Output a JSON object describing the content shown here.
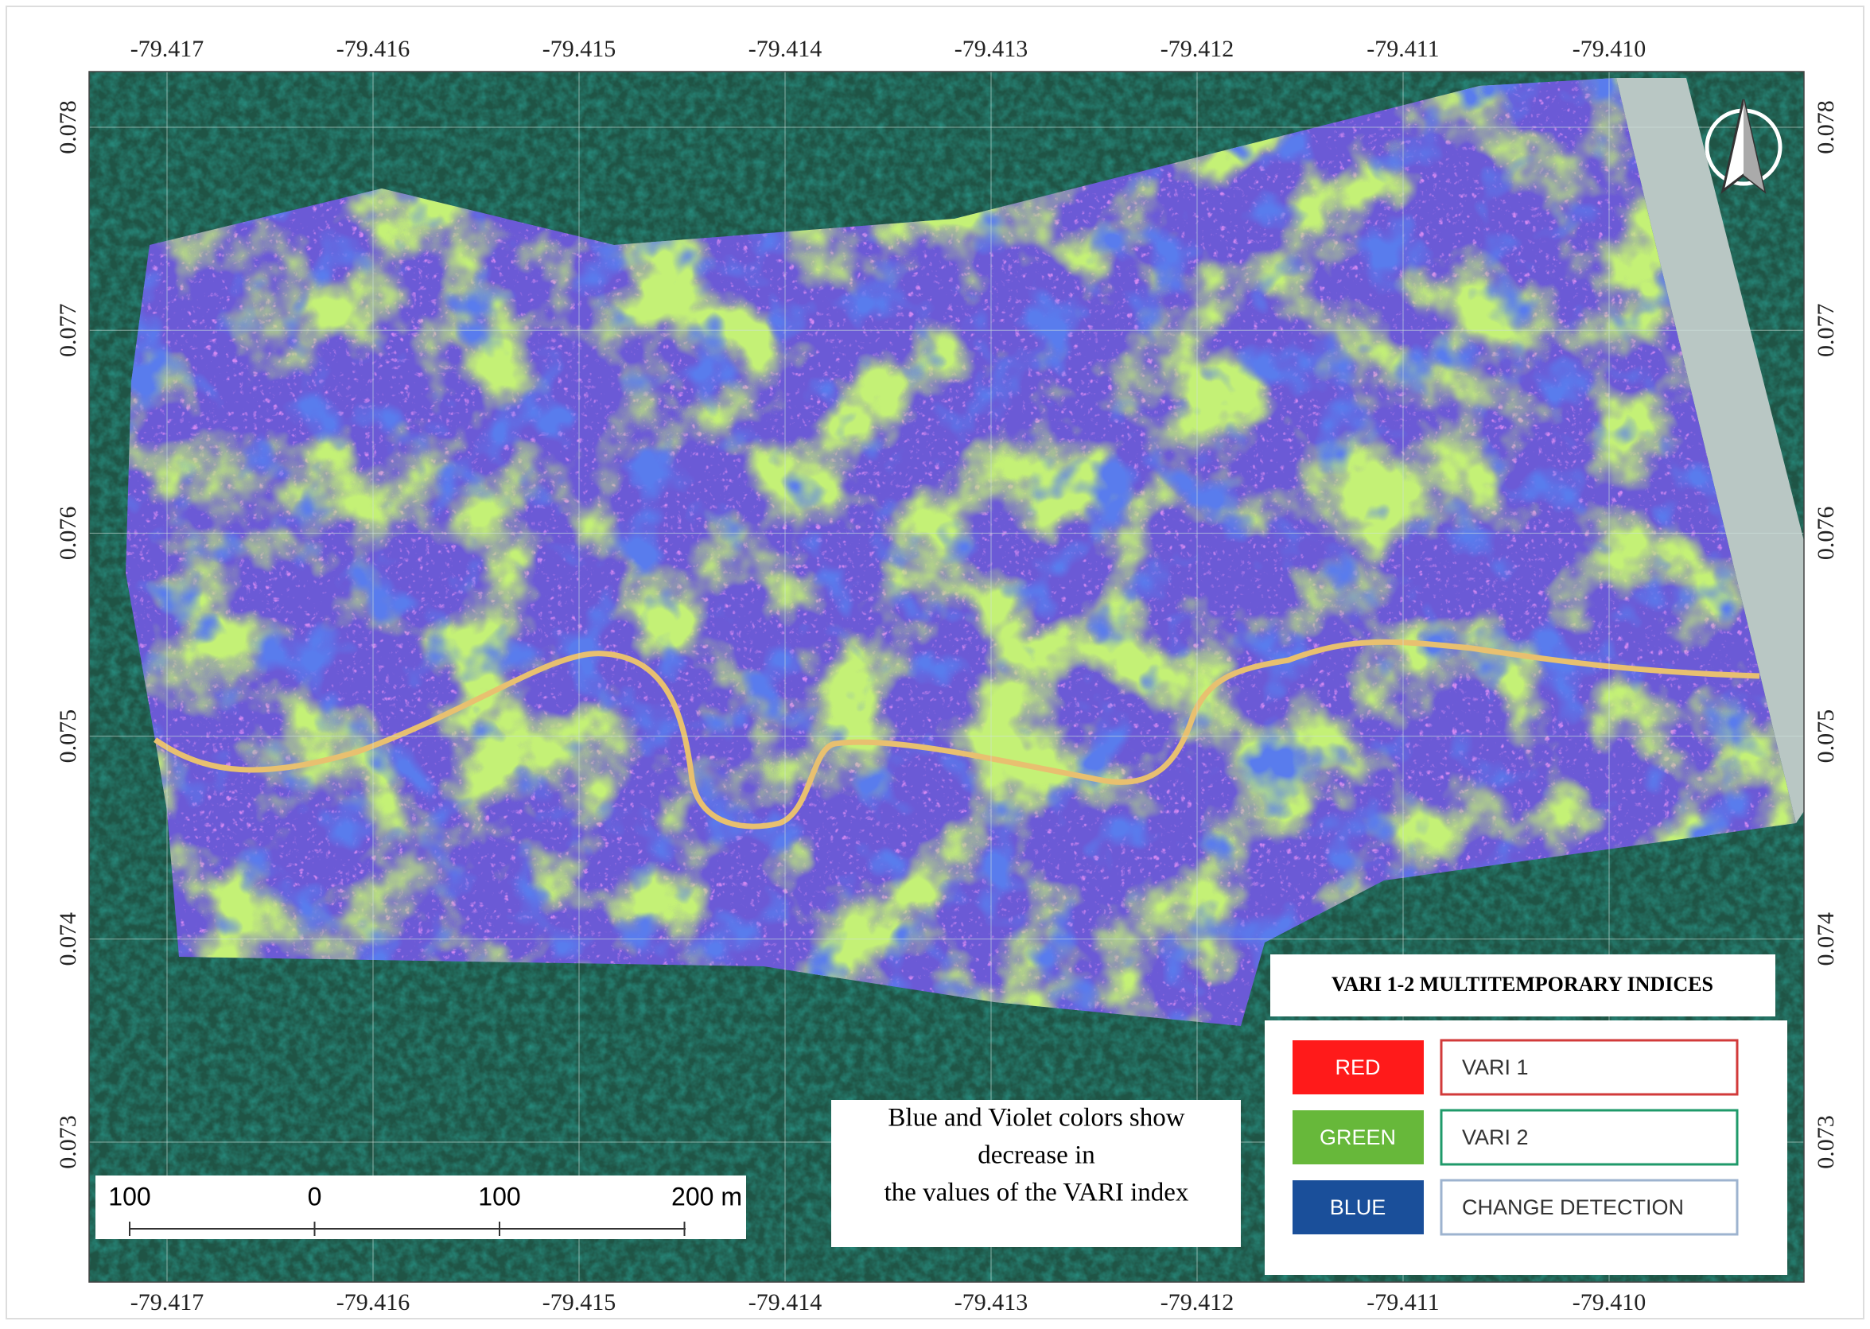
{
  "map": {
    "lon_labels": [
      "-79.417",
      "-79.416",
      "-79.415",
      "-79.414",
      "-79.413",
      "-79.412",
      "-79.411",
      "-79.410"
    ],
    "lat_labels": [
      "0.078",
      "0.077",
      "0.076",
      "0.075",
      "0.074",
      "0.073"
    ],
    "legend": {
      "title": "VARI 1-2 MULTITEMPORARY INDICES",
      "rows": [
        {
          "swatch": "RED",
          "label": "VARI 1"
        },
        {
          "swatch": "GREEN",
          "label": "VARI 2"
        },
        {
          "swatch": "BLUE",
          "label": "CHANGE DETECTION"
        }
      ]
    },
    "note": [
      "Blue and Violet colors show",
      "decrease in",
      "the values of the VARI index"
    ],
    "scale_bar": [
      "100",
      "0",
      "100",
      "200 m"
    ]
  }
}
